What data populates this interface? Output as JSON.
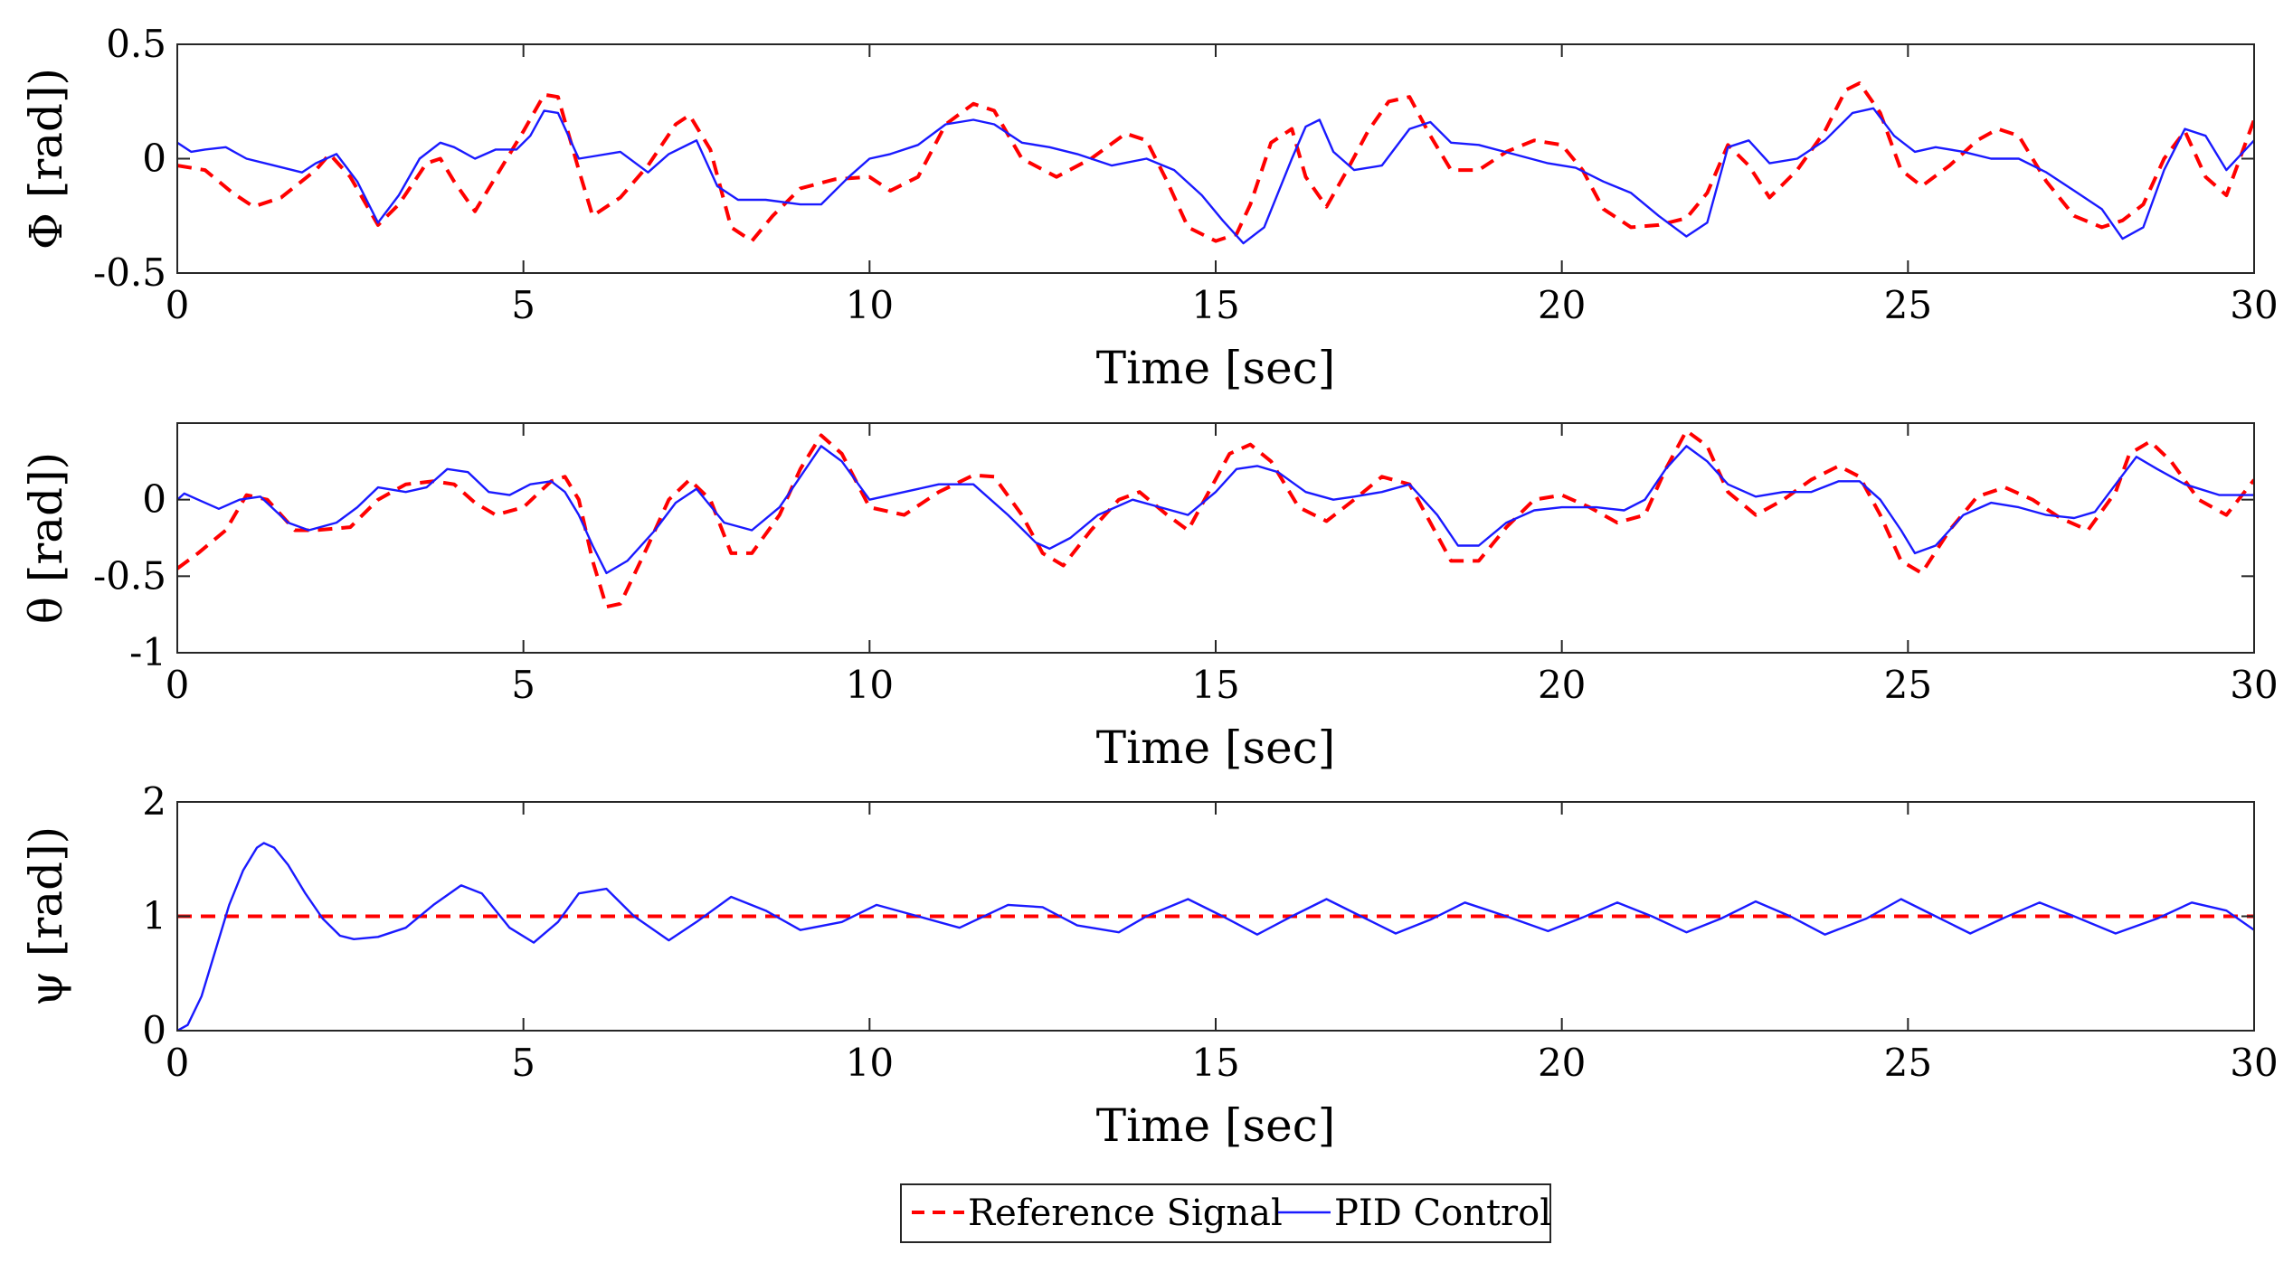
{
  "chart_data": [
    {
      "type": "line",
      "id": "phi",
      "xlabel": "Time [sec]",
      "ylabel": "Φ [rad])",
      "xlim": [
        0,
        30
      ],
      "ylim": [
        -0.5,
        0.5
      ],
      "xticks": [
        0,
        5,
        10,
        15,
        20,
        25,
        30
      ],
      "yticks": [
        -0.5,
        0,
        0.5
      ],
      "ytick_labels": [
        "-0.5",
        "0",
        "0.5"
      ],
      "series": [
        {
          "name": "Reference Signal",
          "style": "dashed",
          "color": "#ff0000",
          "x": [
            0,
            0.4,
            0.8,
            1.1,
            1.5,
            2.0,
            2.2,
            2.5,
            2.9,
            3.2,
            3.6,
            3.8,
            4.0,
            4.3,
            4.6,
            5.0,
            5.3,
            5.5,
            5.8,
            6.0,
            6.4,
            6.8,
            7.2,
            7.4,
            7.7,
            8.0,
            8.3,
            8.6,
            9.0,
            9.5,
            10.0,
            10.3,
            10.7,
            11.1,
            11.5,
            11.8,
            12.2,
            12.7,
            13.2,
            13.7,
            14.0,
            14.3,
            14.6,
            15.0,
            15.3,
            15.5,
            15.8,
            16.1,
            16.3,
            16.6,
            16.9,
            17.2,
            17.5,
            17.8,
            18.1,
            18.4,
            18.8,
            19.2,
            19.6,
            20.0,
            20.3,
            20.6,
            21.0,
            21.4,
            21.8,
            22.1,
            22.4,
            22.7,
            23.0,
            23.4,
            23.8,
            24.1,
            24.3,
            24.6,
            24.9,
            25.2,
            25.6,
            26.0,
            26.3,
            26.6,
            27.0,
            27.4,
            27.8,
            28.1,
            28.4,
            28.7,
            29.0,
            29.3,
            29.6,
            30.0
          ],
          "y": [
            -0.03,
            -0.05,
            -0.15,
            -0.21,
            -0.17,
            -0.05,
            0.02,
            -0.08,
            -0.29,
            -0.2,
            -0.02,
            0.0,
            -0.1,
            -0.23,
            -0.08,
            0.12,
            0.28,
            0.27,
            -0.05,
            -0.25,
            -0.17,
            -0.03,
            0.15,
            0.19,
            0.04,
            -0.3,
            -0.36,
            -0.25,
            -0.13,
            -0.09,
            -0.08,
            -0.14,
            -0.08,
            0.15,
            0.24,
            0.21,
            0.0,
            -0.08,
            0.0,
            0.11,
            0.08,
            -0.1,
            -0.3,
            -0.36,
            -0.33,
            -0.2,
            0.07,
            0.13,
            -0.08,
            -0.21,
            -0.05,
            0.12,
            0.25,
            0.27,
            0.1,
            -0.05,
            -0.05,
            0.03,
            0.08,
            0.06,
            -0.05,
            -0.22,
            -0.3,
            -0.29,
            -0.26,
            -0.15,
            0.06,
            -0.03,
            -0.17,
            -0.05,
            0.12,
            0.3,
            0.33,
            0.2,
            -0.05,
            -0.12,
            -0.03,
            0.08,
            0.13,
            0.1,
            -0.1,
            -0.25,
            -0.3,
            -0.27,
            -0.2,
            0.0,
            0.12,
            -0.08,
            -0.16,
            0.17
          ]
        },
        {
          "name": "PID Control",
          "style": "solid",
          "color": "#1a1aff",
          "x": [
            0,
            0.2,
            0.4,
            0.7,
            1.0,
            1.4,
            1.8,
            2.0,
            2.3,
            2.6,
            2.9,
            3.2,
            3.5,
            3.8,
            4.0,
            4.3,
            4.6,
            4.9,
            5.1,
            5.3,
            5.5,
            5.8,
            6.0,
            6.4,
            6.8,
            7.1,
            7.5,
            7.8,
            8.1,
            8.5,
            9.0,
            9.3,
            9.7,
            10.0,
            10.3,
            10.7,
            11.1,
            11.5,
            11.8,
            12.2,
            12.6,
            13.0,
            13.5,
            14.0,
            14.4,
            14.8,
            15.1,
            15.4,
            15.7,
            15.9,
            16.1,
            16.3,
            16.5,
            16.7,
            17.0,
            17.4,
            17.8,
            18.1,
            18.4,
            18.8,
            19.3,
            19.8,
            20.2,
            20.6,
            21.0,
            21.4,
            21.8,
            22.1,
            22.4,
            22.7,
            23.0,
            23.4,
            23.8,
            24.2,
            24.5,
            24.8,
            25.1,
            25.4,
            25.8,
            26.2,
            26.6,
            27.0,
            27.4,
            27.8,
            28.1,
            28.4,
            28.7,
            29.0,
            29.3,
            29.6,
            30.0
          ],
          "y": [
            0.07,
            0.03,
            0.04,
            0.05,
            0.0,
            -0.03,
            -0.06,
            -0.02,
            0.02,
            -0.1,
            -0.28,
            -0.16,
            0.0,
            0.07,
            0.05,
            0.0,
            0.04,
            0.04,
            0.1,
            0.21,
            0.2,
            0.0,
            0.01,
            0.03,
            -0.06,
            0.02,
            0.08,
            -0.12,
            -0.18,
            -0.18,
            -0.2,
            -0.2,
            -0.08,
            0.0,
            0.02,
            0.06,
            0.15,
            0.17,
            0.15,
            0.07,
            0.05,
            0.02,
            -0.03,
            0.0,
            -0.05,
            -0.16,
            -0.27,
            -0.37,
            -0.3,
            -0.15,
            0.0,
            0.14,
            0.17,
            0.03,
            -0.05,
            -0.03,
            0.13,
            0.16,
            0.07,
            0.06,
            0.02,
            -0.02,
            -0.04,
            -0.1,
            -0.15,
            -0.25,
            -0.34,
            -0.28,
            0.05,
            0.08,
            -0.02,
            0.0,
            0.08,
            0.2,
            0.22,
            0.1,
            0.03,
            0.05,
            0.03,
            0.0,
            0.0,
            -0.06,
            -0.14,
            -0.22,
            -0.35,
            -0.3,
            -0.05,
            0.13,
            0.1,
            -0.05,
            0.08
          ]
        }
      ]
    },
    {
      "type": "line",
      "id": "theta",
      "xlabel": "Time [sec]",
      "ylabel": "θ [rad])",
      "xlim": [
        0,
        30
      ],
      "ylim": [
        -1,
        0.5
      ],
      "xticks": [
        0,
        5,
        10,
        15,
        20,
        25,
        30
      ],
      "yticks": [
        -1,
        -0.5,
        0
      ],
      "ytick_labels": [
        "-1",
        "-0.5",
        "0"
      ],
      "series": [
        {
          "name": "Reference Signal",
          "style": "dashed",
          "color": "#ff0000",
          "x": [
            0,
            0.3,
            0.7,
            1.0,
            1.3,
            1.7,
            2.0,
            2.5,
            2.9,
            3.3,
            3.7,
            4.0,
            4.3,
            4.6,
            5.0,
            5.4,
            5.6,
            5.8,
            6.0,
            6.2,
            6.4,
            6.8,
            7.1,
            7.4,
            7.7,
            8.0,
            8.3,
            8.7,
            9.0,
            9.3,
            9.6,
            10.0,
            10.5,
            11.0,
            11.5,
            11.8,
            12.2,
            12.5,
            12.8,
            13.2,
            13.6,
            13.9,
            14.3,
            14.6,
            14.9,
            15.2,
            15.5,
            15.8,
            16.2,
            16.6,
            17.0,
            17.4,
            17.8,
            18.1,
            18.4,
            18.8,
            19.2,
            19.6,
            20.0,
            20.4,
            20.8,
            21.2,
            21.5,
            21.8,
            22.1,
            22.4,
            22.8,
            23.2,
            23.6,
            24.0,
            24.3,
            24.6,
            24.9,
            25.2,
            25.6,
            26.0,
            26.4,
            26.8,
            27.2,
            27.6,
            28.0,
            28.2,
            28.5,
            28.8,
            29.2,
            29.6,
            30.0
          ],
          "y": [
            -0.45,
            -0.35,
            -0.2,
            0.03,
            0.0,
            -0.2,
            -0.2,
            -0.18,
            0.0,
            0.1,
            0.12,
            0.1,
            -0.02,
            -0.1,
            -0.05,
            0.12,
            0.15,
            0.0,
            -0.4,
            -0.7,
            -0.68,
            -0.3,
            0.0,
            0.13,
            0.0,
            -0.35,
            -0.35,
            -0.1,
            0.2,
            0.42,
            0.3,
            -0.05,
            -0.1,
            0.05,
            0.16,
            0.15,
            -0.1,
            -0.35,
            -0.43,
            -0.2,
            0.0,
            0.05,
            -0.1,
            -0.2,
            0.05,
            0.3,
            0.36,
            0.25,
            -0.05,
            -0.14,
            0.0,
            0.15,
            0.1,
            -0.15,
            -0.4,
            -0.4,
            -0.18,
            0.0,
            0.03,
            -0.05,
            -0.15,
            -0.1,
            0.2,
            0.45,
            0.35,
            0.05,
            -0.1,
            0.0,
            0.13,
            0.22,
            0.15,
            -0.1,
            -0.4,
            -0.48,
            -0.2,
            0.02,
            0.08,
            0.0,
            -0.12,
            -0.2,
            0.05,
            0.3,
            0.38,
            0.25,
            0.0,
            -0.1,
            0.13
          ]
        },
        {
          "name": "PID Control",
          "style": "solid",
          "color": "#1a1aff",
          "x": [
            0,
            0.1,
            0.3,
            0.6,
            0.9,
            1.2,
            1.6,
            1.9,
            2.3,
            2.6,
            2.9,
            3.3,
            3.6,
            3.9,
            4.2,
            4.5,
            4.8,
            5.1,
            5.4,
            5.6,
            5.8,
            6.0,
            6.2,
            6.5,
            6.9,
            7.2,
            7.5,
            7.9,
            8.3,
            8.7,
            9.0,
            9.3,
            9.6,
            10.0,
            10.5,
            11.0,
            11.5,
            12.0,
            12.4,
            12.6,
            12.9,
            13.3,
            13.8,
            14.2,
            14.6,
            15.0,
            15.3,
            15.6,
            15.9,
            16.3,
            16.7,
            17.0,
            17.4,
            17.8,
            18.2,
            18.5,
            18.8,
            19.2,
            19.6,
            20.0,
            20.5,
            20.9,
            21.2,
            21.5,
            21.8,
            22.1,
            22.4,
            22.8,
            23.2,
            23.6,
            24.0,
            24.3,
            24.6,
            24.9,
            25.1,
            25.4,
            25.8,
            26.2,
            26.6,
            27.0,
            27.4,
            27.7,
            28.0,
            28.3,
            28.6,
            29.0,
            29.5,
            30.0
          ],
          "y": [
            0.0,
            0.04,
            0.0,
            -0.06,
            0.0,
            0.02,
            -0.15,
            -0.2,
            -0.15,
            -0.05,
            0.08,
            0.05,
            0.08,
            0.2,
            0.18,
            0.05,
            0.03,
            0.1,
            0.12,
            0.05,
            -0.1,
            -0.3,
            -0.48,
            -0.4,
            -0.2,
            -0.02,
            0.07,
            -0.15,
            -0.2,
            -0.05,
            0.15,
            0.35,
            0.25,
            0.0,
            0.05,
            0.1,
            0.1,
            -0.1,
            -0.28,
            -0.32,
            -0.25,
            -0.1,
            0.0,
            -0.05,
            -0.1,
            0.05,
            0.2,
            0.22,
            0.18,
            0.05,
            0.0,
            0.02,
            0.05,
            0.1,
            -0.1,
            -0.3,
            -0.3,
            -0.15,
            -0.07,
            -0.05,
            -0.05,
            -0.07,
            0.0,
            0.2,
            0.35,
            0.25,
            0.1,
            0.02,
            0.05,
            0.05,
            0.12,
            0.12,
            0.0,
            -0.2,
            -0.35,
            -0.3,
            -0.1,
            -0.02,
            -0.05,
            -0.1,
            -0.12,
            -0.08,
            0.1,
            0.28,
            0.2,
            0.1,
            0.03,
            0.03
          ]
        }
      ]
    },
    {
      "type": "line",
      "id": "psi",
      "xlabel": "Time [sec]",
      "ylabel": "ψ [rad])",
      "xlim": [
        0,
        30
      ],
      "ylim": [
        0,
        2
      ],
      "xticks": [
        0,
        5,
        10,
        15,
        20,
        25,
        30
      ],
      "yticks": [
        0,
        1,
        2
      ],
      "ytick_labels": [
        "0",
        "1",
        "2"
      ],
      "series": [
        {
          "name": "Reference Signal",
          "style": "dashed",
          "color": "#ff0000",
          "x": [
            0,
            30
          ],
          "y": [
            1,
            1
          ]
        },
        {
          "name": "PID Control",
          "style": "solid",
          "color": "#1a1aff",
          "x": [
            0,
            0.15,
            0.35,
            0.55,
            0.75,
            0.95,
            1.15,
            1.25,
            1.4,
            1.6,
            1.85,
            2.1,
            2.35,
            2.55,
            2.9,
            3.3,
            3.7,
            4.1,
            4.4,
            4.8,
            5.15,
            5.5,
            5.8,
            6.2,
            6.6,
            7.1,
            7.5,
            8.0,
            8.5,
            9.0,
            9.6,
            10.1,
            10.7,
            11.3,
            12.0,
            12.5,
            13.0,
            13.6,
            14.0,
            14.6,
            15.1,
            15.6,
            16.1,
            16.6,
            17.1,
            17.6,
            18.1,
            18.6,
            19.2,
            19.8,
            20.3,
            20.8,
            21.3,
            21.8,
            22.3,
            22.8,
            23.3,
            23.8,
            24.4,
            24.9,
            25.4,
            25.9,
            26.4,
            26.9,
            27.4,
            28.0,
            28.6,
            29.1,
            29.6,
            30.0
          ],
          "y": [
            0.0,
            0.05,
            0.3,
            0.7,
            1.1,
            1.4,
            1.6,
            1.64,
            1.6,
            1.45,
            1.2,
            0.98,
            0.83,
            0.8,
            0.82,
            0.9,
            1.1,
            1.27,
            1.2,
            0.9,
            0.77,
            0.95,
            1.2,
            1.24,
            1.0,
            0.79,
            0.95,
            1.17,
            1.05,
            0.88,
            0.95,
            1.1,
            1.0,
            0.9,
            1.1,
            1.08,
            0.92,
            0.86,
            1.0,
            1.15,
            1.0,
            0.84,
            1.0,
            1.15,
            1.0,
            0.85,
            0.97,
            1.12,
            1.0,
            0.87,
            0.99,
            1.12,
            1.0,
            0.86,
            0.98,
            1.13,
            1.0,
            0.84,
            0.98,
            1.15,
            1.0,
            0.85,
            0.99,
            1.12,
            1.0,
            0.85,
            0.98,
            1.12,
            1.05,
            0.88
          ]
        }
      ]
    }
  ],
  "legend": {
    "entries": [
      {
        "label": "Reference Signal",
        "style": "dashed",
        "color": "#ff0000"
      },
      {
        "label": "PID Control",
        "style": "solid",
        "color": "#1a1aff"
      }
    ]
  }
}
